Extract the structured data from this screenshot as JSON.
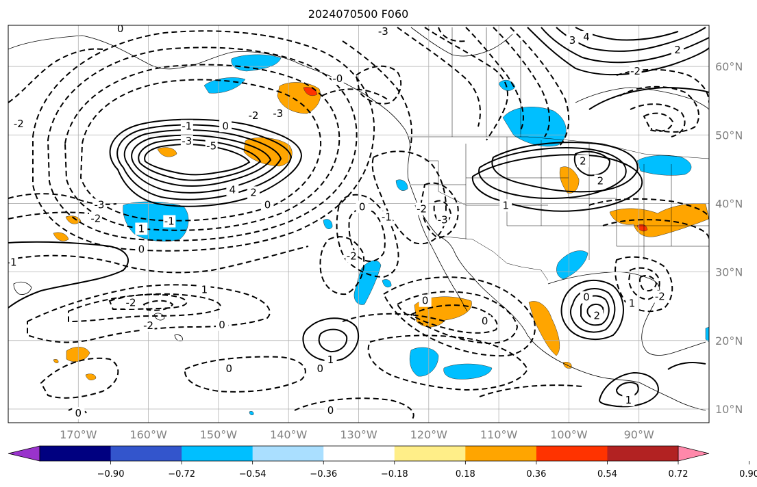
{
  "title": "2024070500 F060",
  "map": {
    "projection": "PlateCarree",
    "lon_range": [
      -180,
      -80
    ],
    "lat_range": [
      8,
      66
    ],
    "lon_tick_labels": [
      "170°W",
      "160°W",
      "150°W",
      "140°W",
      "130°W",
      "120°W",
      "110°W",
      "100°W",
      "90°W"
    ],
    "lat_tick_labels": [
      "10°N",
      "20°N",
      "30°N",
      "40°N",
      "50°N",
      "60°N"
    ],
    "gridlines": true,
    "features": [
      "coastlines",
      "country borders",
      "US state borders"
    ]
  },
  "colorbar": {
    "orientation": "horizontal",
    "tick_labels": [
      "−0.90",
      "−0.72",
      "−0.54",
      "−0.36",
      "−0.18",
      "0.18",
      "0.36",
      "0.54",
      "0.72",
      "0.90"
    ],
    "colors": [
      "#9933cc",
      "#000080",
      "#3355cc",
      "#00bfff",
      "#aadfff",
      "#ffffff",
      "#ffee88",
      "#ffa500",
      "#ff3300",
      "#b22222",
      "#ff88aa"
    ],
    "extend": "both"
  },
  "contour_labels": [
    {
      "text": "-3",
      "lon": -167,
      "lat": 39.8
    },
    {
      "text": "-2",
      "lon": -167.5,
      "lat": 37.8
    },
    {
      "text": "1",
      "lon": -161,
      "lat": 36.3
    },
    {
      "text": "0",
      "lon": -161,
      "lat": 33.3
    },
    {
      "text": "0",
      "lon": -143,
      "lat": 39.8
    },
    {
      "text": "-1",
      "lon": -157,
      "lat": 37.4
    },
    {
      "text": "-1",
      "lon": -179.5,
      "lat": 31.4
    },
    {
      "text": "-2",
      "lon": -178.5,
      "lat": 51.6
    },
    {
      "text": "-1",
      "lon": -154.5,
      "lat": 51.3
    },
    {
      "text": "0",
      "lon": -149,
      "lat": 51.3
    },
    {
      "text": "-3",
      "lon": -154.5,
      "lat": 49.1
    },
    {
      "text": "-5",
      "lon": -151,
      "lat": 48.4
    },
    {
      "text": "4",
      "lon": -148,
      "lat": 42
    },
    {
      "text": "2",
      "lon": -145,
      "lat": 41.6
    },
    {
      "text": "-2",
      "lon": -145,
      "lat": 52.8
    },
    {
      "text": "-3",
      "lon": -141.5,
      "lat": 53.1
    },
    {
      "text": "0",
      "lon": -164,
      "lat": 65.5
    },
    {
      "text": "-0",
      "lon": -133,
      "lat": 58.2
    },
    {
      "text": "-3",
      "lon": -126.5,
      "lat": 65.1
    },
    {
      "text": "3",
      "lon": -99.5,
      "lat": 63.8
    },
    {
      "text": "4",
      "lon": -97.5,
      "lat": 64.3
    },
    {
      "text": "2",
      "lon": -84.5,
      "lat": 62.4
    },
    {
      "text": "-2",
      "lon": -90.5,
      "lat": 59.3
    },
    {
      "text": "2",
      "lon": -98,
      "lat": 46.2
    },
    {
      "text": "2",
      "lon": -95.5,
      "lat": 43.3
    },
    {
      "text": "1",
      "lon": -109,
      "lat": 39.7
    },
    {
      "text": "-2",
      "lon": -121,
      "lat": 39.2
    },
    {
      "text": "0",
      "lon": -129.5,
      "lat": 39.5
    },
    {
      "text": "-1",
      "lon": -126,
      "lat": 38
    },
    {
      "text": "-3",
      "lon": -118,
      "lat": 37.6
    },
    {
      "text": "-2",
      "lon": -131,
      "lat": 32.3
    },
    {
      "text": "1",
      "lon": -152,
      "lat": 27.4
    },
    {
      "text": "-2",
      "lon": -162.5,
      "lat": 25.5
    },
    {
      "text": "-2",
      "lon": -160,
      "lat": 22.2
    },
    {
      "text": "0",
      "lon": -149.5,
      "lat": 22.3
    },
    {
      "text": "1",
      "lon": -134,
      "lat": 17.2
    },
    {
      "text": "0",
      "lon": -135.5,
      "lat": 15.9
    },
    {
      "text": "0",
      "lon": -148.5,
      "lat": 15.9
    },
    {
      "text": "0",
      "lon": -120.5,
      "lat": 25.8
    },
    {
      "text": "0",
      "lon": -112,
      "lat": 22.8
    },
    {
      "text": "0",
      "lon": -97.5,
      "lat": 26.3
    },
    {
      "text": "2",
      "lon": -96,
      "lat": 23.6
    },
    {
      "text": "1",
      "lon": -91,
      "lat": 25.4
    },
    {
      "text": "-2",
      "lon": -87,
      "lat": 26.4
    },
    {
      "text": "1",
      "lon": -91.5,
      "lat": 11.3
    },
    {
      "text": "0",
      "lon": -134,
      "lat": 9.8
    },
    {
      "text": "0",
      "lon": -170,
      "lat": 9.4
    }
  ]
}
